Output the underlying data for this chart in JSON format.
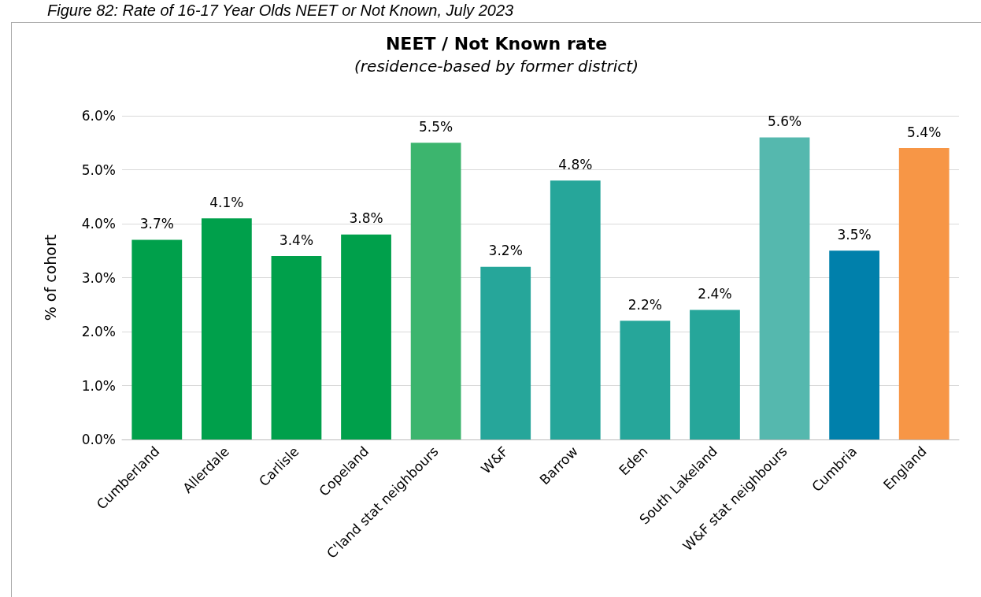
{
  "chart_data": {
    "type": "bar",
    "title": "NEET / Not Known rate",
    "subtitle": "(residence-based by former district)",
    "ylabel": "% of cohort",
    "annotations": [
      "Figure 82: Rate of 16-17 Year Olds NEET or Not Known, July 2023"
    ],
    "categories": [
      "Cumberland",
      "Allerdale",
      "Carlisle",
      "Copeland",
      "C'land stat neighbours",
      "W&F",
      "Barrow",
      "Eden",
      "South Lakeland",
      "W&F stat neighbours",
      "Cumbria",
      "England"
    ],
    "values": [
      3.7,
      4.1,
      3.4,
      3.8,
      5.5,
      3.2,
      4.8,
      2.2,
      2.4,
      5.6,
      3.5,
      5.4
    ],
    "value_labels": [
      "3.7%",
      "4.1%",
      "3.4%",
      "3.8%",
      "5.5%",
      "3.2%",
      "4.8%",
      "2.2%",
      "2.4%",
      "5.6%",
      "3.5%",
      "5.4%"
    ],
    "colors": [
      "#00a04b",
      "#00a04b",
      "#00a04b",
      "#00a04b",
      "#3cb56e",
      "#26a69a",
      "#26a69a",
      "#26a69a",
      "#26a69a",
      "#55b8ae",
      "#0080ab",
      "#f79646"
    ],
    "ylim": [
      0,
      6
    ],
    "yticks": [
      {
        "value": 0,
        "label": "0.0%"
      },
      {
        "value": 1,
        "label": "1.0%"
      },
      {
        "value": 2,
        "label": "2.0%"
      },
      {
        "value": 3,
        "label": "3.0%"
      },
      {
        "value": 4,
        "label": "4.0%"
      },
      {
        "value": 5,
        "label": "5.0%"
      },
      {
        "value": 6,
        "label": "6.0%"
      }
    ],
    "grid": "y"
  }
}
